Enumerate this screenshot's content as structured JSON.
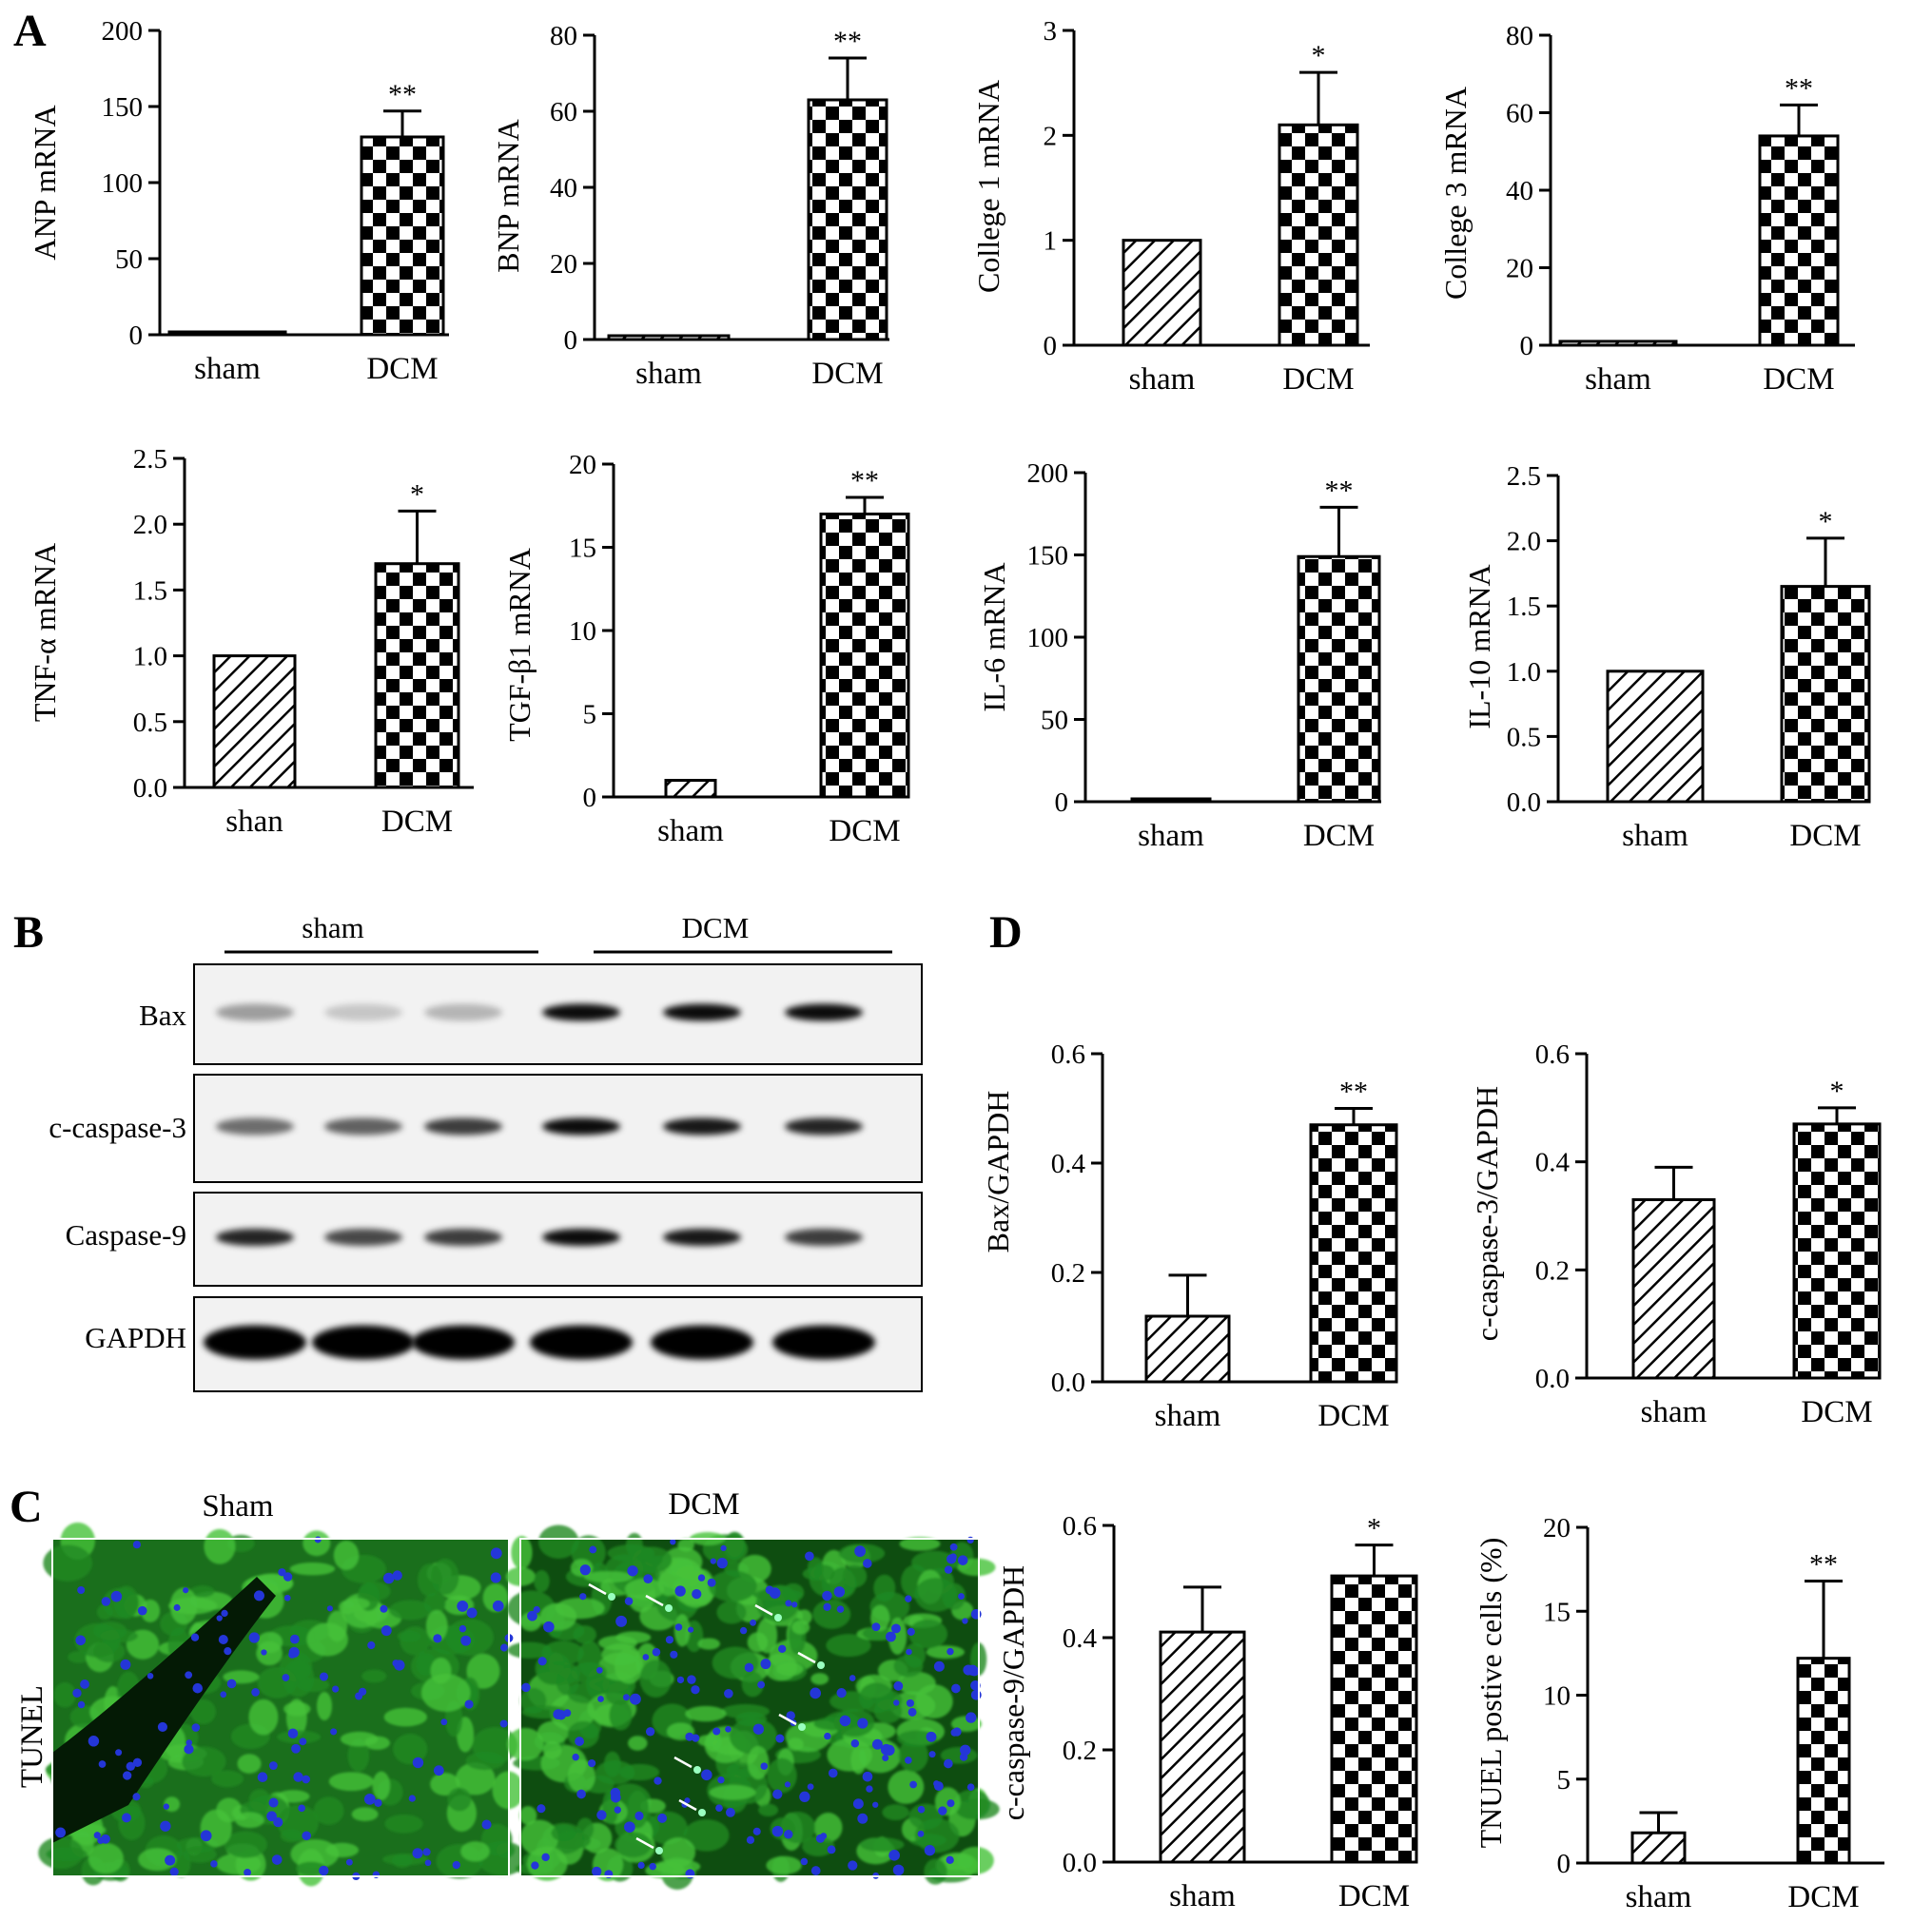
{
  "panels": {
    "A": "A",
    "B": "B",
    "C": "C",
    "D": "D"
  },
  "patterns": {
    "sham": "hatch",
    "DCM": "checker"
  },
  "colors": {
    "ink": "#000000",
    "tunel_green": "#1f8a22",
    "tunel_green_light": "#46c23a",
    "nuclei_blue": "#2436d8",
    "background": "#ffffff"
  },
  "blot": {
    "groups": [
      "sham",
      "DCM"
    ],
    "rows": [
      {
        "label": "Bax",
        "intensities": [
          0.35,
          0.18,
          0.25,
          0.95,
          0.95,
          0.95
        ]
      },
      {
        "label": "c-caspase-3",
        "intensities": [
          0.55,
          0.6,
          0.75,
          0.95,
          0.9,
          0.85
        ]
      },
      {
        "label": "Caspase-9",
        "intensities": [
          0.85,
          0.7,
          0.75,
          0.95,
          0.9,
          0.75
        ]
      },
      {
        "label": "GAPDH",
        "intensities": [
          1.0,
          1.0,
          1.0,
          1.0,
          1.0,
          1.0
        ]
      }
    ]
  },
  "tunel": {
    "row_label": "TUNEL",
    "panels": [
      "Sham",
      "DCM"
    ]
  },
  "chart_data": [
    {
      "type": "bar",
      "categories": [
        "sham",
        "DCM"
      ],
      "values": [
        1,
        130
      ],
      "errors": [
        0,
        17
      ],
      "significance": [
        "",
        "**"
      ],
      "ylabel": "ANP mRNA",
      "ylim": [
        0,
        200
      ],
      "yticks": [
        "0",
        "50",
        "100",
        "150",
        "200"
      ]
    },
    {
      "type": "bar",
      "categories": [
        "sham",
        "DCM"
      ],
      "values": [
        1,
        63
      ],
      "errors": [
        0,
        11
      ],
      "significance": [
        "",
        "**"
      ],
      "ylabel": "BNP mRNA",
      "ylim": [
        0,
        80
      ],
      "yticks": [
        "0",
        "20",
        "40",
        "60",
        "80"
      ]
    },
    {
      "type": "bar",
      "categories": [
        "sham",
        "DCM"
      ],
      "values": [
        1,
        2.1
      ],
      "errors": [
        0,
        0.5
      ],
      "significance": [
        "",
        "*"
      ],
      "ylabel": "College 1 mRNA",
      "ylim": [
        0,
        3
      ],
      "yticks": [
        "0",
        "1",
        "2",
        "3"
      ]
    },
    {
      "type": "bar",
      "categories": [
        "sham",
        "DCM"
      ],
      "values": [
        1,
        54
      ],
      "errors": [
        0,
        8
      ],
      "significance": [
        "",
        "**"
      ],
      "ylabel": "College 3 mRNA",
      "ylim": [
        0,
        80
      ],
      "yticks": [
        "0",
        "20",
        "40",
        "60",
        "80"
      ]
    },
    {
      "type": "bar",
      "categories": [
        "shan",
        "DCM"
      ],
      "values": [
        1,
        1.7
      ],
      "errors": [
        0,
        0.4
      ],
      "significance": [
        "",
        "*"
      ],
      "ylabel": "TNF-α mRNA",
      "ylim": [
        0,
        2.5
      ],
      "yticks": [
        "0.0",
        "0.5",
        "1.0",
        "1.5",
        "2.0",
        "2.5"
      ]
    },
    {
      "type": "bar",
      "categories": [
        "sham",
        "DCM"
      ],
      "values": [
        1,
        17
      ],
      "errors": [
        0,
        1
      ],
      "significance": [
        "",
        "**"
      ],
      "ylabel": "TGF-β1 mRNA",
      "ylim": [
        0,
        20
      ],
      "yticks": [
        "0",
        "5",
        "10",
        "15",
        "20"
      ]
    },
    {
      "type": "bar",
      "categories": [
        "sham",
        "DCM"
      ],
      "values": [
        1,
        149
      ],
      "errors": [
        0,
        30
      ],
      "significance": [
        "",
        "**"
      ],
      "ylabel": "IL-6 mRNA",
      "ylim": [
        0,
        200
      ],
      "yticks": [
        "0",
        "50",
        "100",
        "150",
        "200"
      ]
    },
    {
      "type": "bar",
      "categories": [
        "sham",
        "DCM"
      ],
      "values": [
        1,
        1.65
      ],
      "errors": [
        0,
        0.37
      ],
      "significance": [
        "",
        "*"
      ],
      "ylabel": "IL-10 mRNA",
      "ylim": [
        0,
        2.5
      ],
      "yticks": [
        "0.0",
        "0.5",
        "1.0",
        "1.5",
        "2.0",
        "2.5"
      ]
    },
    {
      "type": "bar",
      "categories": [
        "sham",
        "DCM"
      ],
      "values": [
        0.12,
        0.47
      ],
      "errors": [
        0.075,
        0.03
      ],
      "significance": [
        "",
        "**"
      ],
      "ylabel": "Bax/GAPDH",
      "ylim": [
        0,
        0.6
      ],
      "yticks": [
        "0.0",
        "0.2",
        "0.4",
        "0.6"
      ]
    },
    {
      "type": "bar",
      "categories": [
        "sham",
        "DCM"
      ],
      "values": [
        0.33,
        0.47
      ],
      "errors": [
        0.06,
        0.03
      ],
      "significance": [
        "",
        "*"
      ],
      "ylabel": "c-caspase-3/GAPDH",
      "ylim": [
        0,
        0.6
      ],
      "yticks": [
        "0.0",
        "0.2",
        "0.4",
        "0.6"
      ]
    },
    {
      "type": "bar",
      "categories": [
        "sham",
        "DCM"
      ],
      "values": [
        0.41,
        0.51
      ],
      "errors": [
        0.08,
        0.055
      ],
      "significance": [
        "",
        "*"
      ],
      "ylabel": "c-caspase-9/GAPDH",
      "ylim": [
        0,
        0.6
      ],
      "yticks": [
        "0.0",
        "0.2",
        "0.4",
        "0.6"
      ]
    },
    {
      "type": "bar",
      "categories": [
        "sham",
        "DCM"
      ],
      "values": [
        1.8,
        12.2
      ],
      "errors": [
        1.2,
        4.6
      ],
      "significance": [
        "",
        "**"
      ],
      "ylabel": "TNUEL postive cells (%)",
      "ylim": [
        0,
        20
      ],
      "yticks": [
        "0",
        "5",
        "10",
        "15",
        "20"
      ]
    }
  ]
}
